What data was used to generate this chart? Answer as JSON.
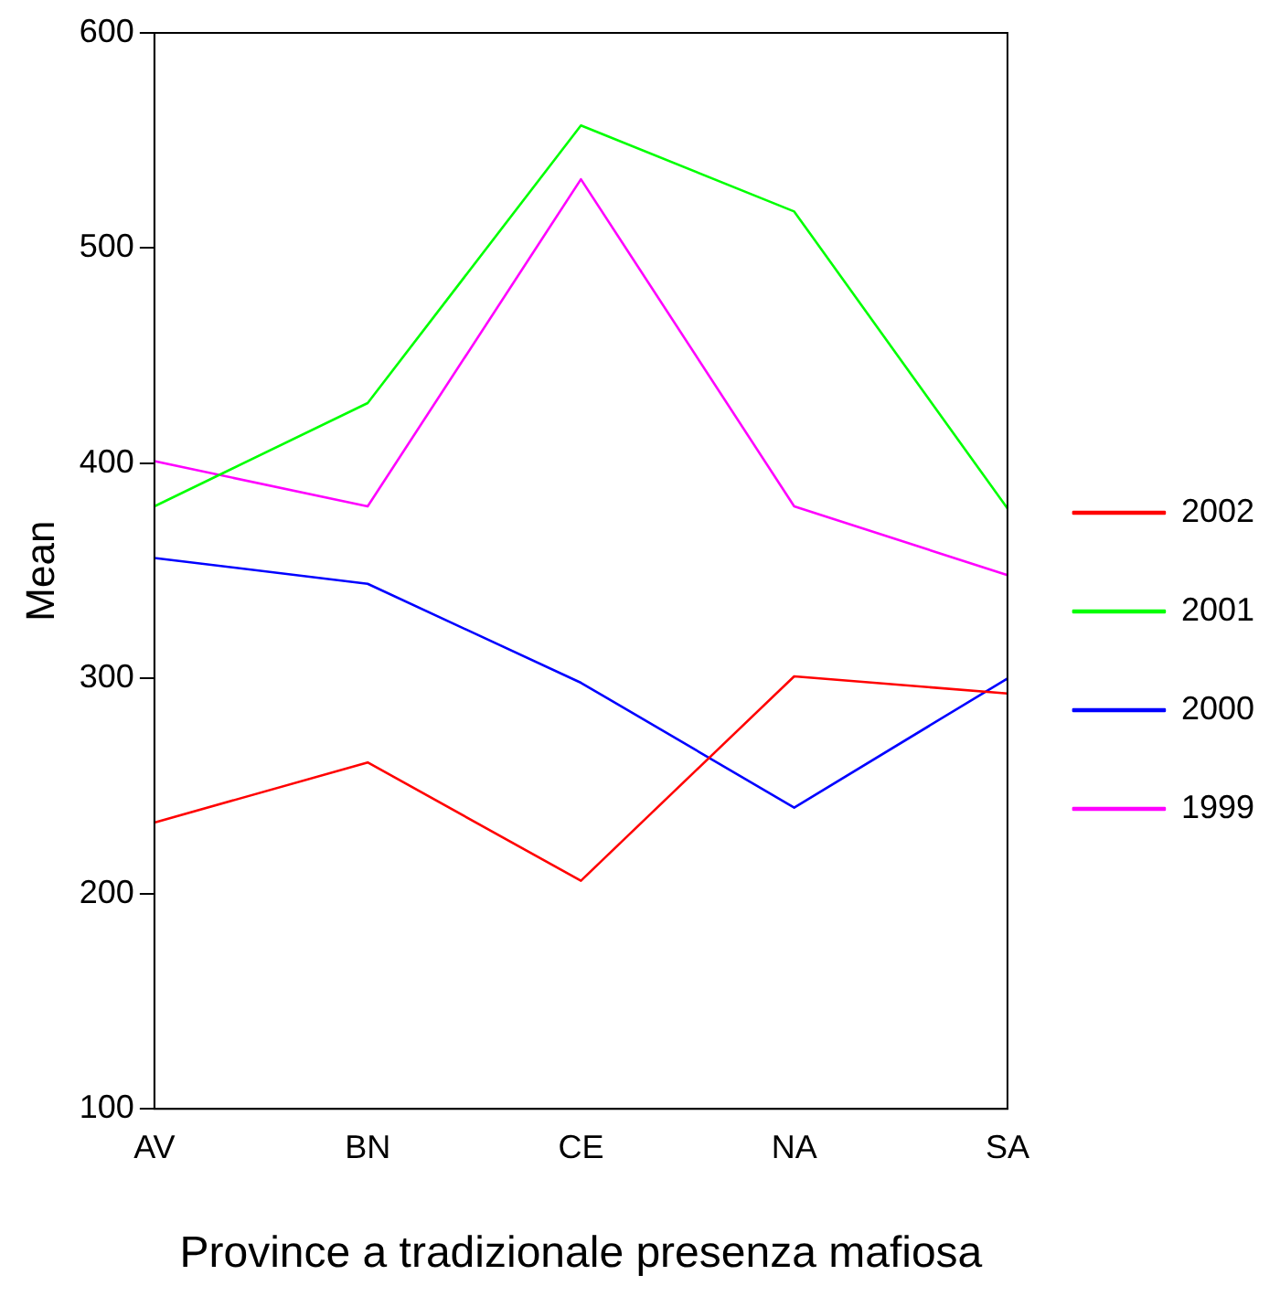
{
  "chart_data": {
    "type": "line",
    "xlabel": "Province a tradizionale presenza mafiosa",
    "ylabel": "Mean",
    "categories": [
      "AV",
      "BN",
      "CE",
      "NA",
      "SA"
    ],
    "series": [
      {
        "name": "2002",
        "color": "#ff0000",
        "values": [
          233,
          261,
          206,
          301,
          293
        ]
      },
      {
        "name": "2001",
        "color": "#00ff00",
        "values": [
          380,
          428,
          557,
          517,
          379
        ]
      },
      {
        "name": "2000",
        "color": "#0000ff",
        "values": [
          356,
          344,
          298,
          240,
          300
        ]
      },
      {
        "name": "1999",
        "color": "#ff00ff",
        "values": [
          401,
          380,
          532,
          380,
          348
        ]
      }
    ],
    "ylim": [
      100,
      600
    ],
    "yticks": [
      100,
      200,
      300,
      400,
      500,
      600
    ],
    "grid": false,
    "legend": "right",
    "marker": "none",
    "line_style": "solid"
  }
}
